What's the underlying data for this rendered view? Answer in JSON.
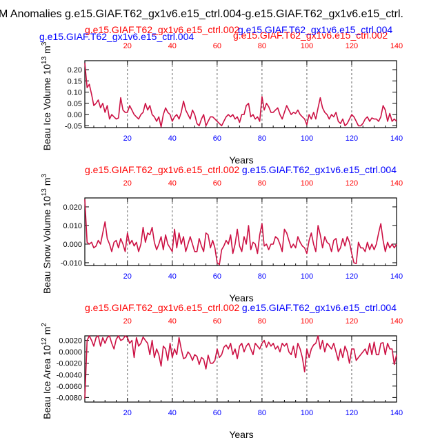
{
  "title": "M Anomalies g.e15.GIAF.T62_gx1v6.e15_ctrl.004-g.e15.GIAF.T62_gx1v6.e15_ctrl.",
  "colors": {
    "case_a": "#0000ff",
    "case_b": "#ff0000",
    "series": "#cc1144",
    "grid": "#666666"
  },
  "chart_data": [
    {
      "type": "line",
      "name": "volume",
      "top_labels": {
        "blue": "g.e15.GIAF.T62_gx1v6.e15_ctrl.004",
        "red_left": "g.e15.GIAF.T62_gx1v6.e15_ctrl.002",
        "red_right": "g.e15.GIAF.T62_gx1v6.e15_ctrl.002"
      },
      "ylabel": "Beau Ice Volume 10",
      "ylabel_exp": "13",
      "ylabel_unit": "m",
      "ylabel_unit_exp": "3",
      "xlabel": "Years",
      "xlim": [
        1,
        140
      ],
      "ylim": [
        -0.058,
        0.24
      ],
      "xticks": [
        20,
        40,
        60,
        80,
        100,
        120,
        140
      ],
      "yticks": [
        0.2,
        0.15,
        0.1,
        0.05,
        0.0,
        -0.05
      ],
      "ytick_labels": [
        "0.20",
        "0.15",
        "0.10",
        "0.05",
        "0.00",
        "-0.05"
      ],
      "x": [
        1,
        2,
        3,
        4,
        5,
        6,
        7,
        8,
        9,
        10,
        11,
        12,
        13,
        14,
        15,
        16,
        17,
        18,
        19,
        20,
        21,
        22,
        23,
        24,
        25,
        26,
        27,
        28,
        29,
        30,
        31,
        32,
        33,
        34,
        35,
        36,
        37,
        38,
        39,
        40,
        41,
        42,
        43,
        44,
        45,
        46,
        47,
        48,
        49,
        50,
        51,
        52,
        53,
        54,
        55,
        56,
        57,
        58,
        59,
        60,
        61,
        62,
        63,
        64,
        65,
        66,
        67,
        68,
        69,
        70,
        71,
        72,
        73,
        74,
        75,
        76,
        77,
        78,
        79,
        80,
        81,
        82,
        83,
        84,
        85,
        86,
        87,
        88,
        89,
        90,
        91,
        92,
        93,
        94,
        95,
        96,
        97,
        98,
        99,
        100,
        101,
        102,
        103,
        104,
        105,
        106,
        107,
        108,
        109,
        110,
        111,
        112,
        113,
        114,
        115,
        116,
        117,
        118,
        119,
        120,
        121,
        122,
        123,
        124,
        125,
        126,
        127,
        128,
        129,
        130,
        131,
        132,
        133,
        134,
        135,
        136,
        137,
        138,
        139,
        140
      ],
      "y": [
        0.23,
        0.12,
        0.135,
        0.09,
        0.04,
        0.05,
        0.065,
        0.03,
        0.05,
        0.01,
        0.04,
        -0.02,
        0.0,
        -0.01,
        -0.02,
        -0.015,
        0.075,
        0.02,
        0.01,
        0.01,
        0.04,
        0.02,
        0.0,
        -0.01,
        -0.02,
        0.0,
        0.01,
        0.05,
        0.02,
        0.04,
        0.0,
        -0.01,
        -0.03,
        -0.01,
        -0.055,
        0.0,
        0.03,
        0.01,
        0.0,
        -0.03,
        -0.01,
        0.0,
        -0.02,
        0.01,
        0.06,
        0.02,
        0.0,
        -0.02,
        0.02,
        0.0,
        -0.04,
        -0.05,
        -0.02,
        0.0,
        -0.05,
        -0.03,
        -0.01,
        -0.01,
        -0.02,
        -0.03,
        -0.04,
        -0.05,
        -0.03,
        -0.01,
        0.0,
        -0.01,
        0.0,
        -0.02,
        -0.01,
        -0.035,
        0.0,
        0.0,
        0.04,
        0.05,
        -0.01,
        0.0,
        -0.02,
        -0.01,
        -0.03,
        0.08,
        0.02,
        0.05,
        0.035,
        0.01,
        0.01,
        0.02,
        0.03,
        0.0,
        -0.02,
        0.01,
        0.04,
        0.02,
        0.0,
        0.01,
        0.005,
        0.02,
        0.0,
        -0.01,
        -0.02,
        -0.045,
        0.0,
        -0.02,
        0.01,
        -0.02,
        0.03,
        0.075,
        0.03,
        0.01,
        0.0,
        -0.02,
        0.0,
        -0.01,
        0.01,
        -0.03,
        -0.04,
        -0.02,
        -0.05,
        -0.04,
        -0.02,
        0.0,
        -0.01,
        -0.03,
        -0.05,
        -0.05,
        -0.04,
        -0.02,
        -0.01,
        -0.03,
        -0.015,
        -0.02,
        -0.02,
        -0.03,
        -0.01,
        0.04,
        0.02,
        -0.03,
        0.005,
        -0.03,
        -0.02,
        -0.03
      ]
    },
    {
      "type": "line",
      "name": "snow",
      "top_labels": {
        "red": "g.e15.GIAF.T62_gx1v6.e15_ctrl.002",
        "blue": "g.e15.GIAF.T62_gx1v6.e15_ctrl.004"
      },
      "ylabel": "Beau Snow Volume 10",
      "ylabel_exp": "13",
      "ylabel_unit": "m",
      "ylabel_unit_exp": "3",
      "xlabel": "Years",
      "xlim": [
        1,
        140
      ],
      "ylim": [
        -0.0115,
        0.0248
      ],
      "xticks": [
        20,
        40,
        60,
        80,
        100,
        120,
        140
      ],
      "yticks": [
        0.02,
        0.01,
        0.0,
        -0.01
      ],
      "ytick_labels": [
        "0.020",
        "0.010",
        "0.000",
        "-0.010"
      ],
      "x": [
        1,
        2,
        3,
        4,
        5,
        6,
        7,
        8,
        9,
        10,
        11,
        12,
        13,
        14,
        15,
        16,
        17,
        18,
        19,
        20,
        21,
        22,
        23,
        24,
        25,
        26,
        27,
        28,
        29,
        30,
        31,
        32,
        33,
        34,
        35,
        36,
        37,
        38,
        39,
        40,
        41,
        42,
        43,
        44,
        45,
        46,
        47,
        48,
        49,
        50,
        51,
        52,
        53,
        54,
        55,
        56,
        57,
        58,
        59,
        60,
        61,
        62,
        63,
        64,
        65,
        66,
        67,
        68,
        69,
        70,
        71,
        72,
        73,
        74,
        75,
        76,
        77,
        78,
        79,
        80,
        81,
        82,
        83,
        84,
        85,
        86,
        87,
        88,
        89,
        90,
        91,
        92,
        93,
        94,
        95,
        96,
        97,
        98,
        99,
        100,
        101,
        102,
        103,
        104,
        105,
        106,
        107,
        108,
        109,
        110,
        111,
        112,
        113,
        114,
        115,
        116,
        117,
        118,
        119,
        120,
        121,
        122,
        123,
        124,
        125,
        126,
        127,
        128,
        129,
        130,
        131,
        132,
        133,
        134,
        135,
        136,
        137,
        138,
        139,
        140
      ],
      "y": [
        0.024,
        0.001,
        0.0,
        0.001,
        -0.002,
        -0.001,
        0.002,
        0.0,
        0.006,
        0.012,
        0.003,
        0.0,
        -0.004,
        0.001,
        0.002,
        -0.002,
        0.003,
        0.0,
        -0.004,
        0.006,
        0.0,
        0.002,
        -0.001,
        0.001,
        -0.004,
        0.0,
        0.009,
        0.001,
        0.006,
        0.005,
        0.009,
        0.001,
        -0.003,
        0.0,
        0.004,
        -0.003,
        0.005,
        0.0,
        -0.002,
        -0.004,
        0.008,
        -0.002,
        0.006,
        0.0,
        0.004,
        -0.004,
        0.0,
        0.004,
        0.0,
        -0.004,
        -0.004,
        0.003,
        -0.001,
        -0.004,
        0.006,
        0.005,
        -0.002,
        0.002,
        -0.002,
        -0.01,
        -0.011,
        -0.003,
        -0.001,
        0.002,
        0.0,
        0.005,
        -0.005,
        0.0,
        0.008,
        -0.001,
        -0.004,
        0.004,
        0.0,
        0.01,
        -0.003,
        0.001,
        0.0,
        -0.005,
        0.005,
        0.011,
        -0.001,
        0.0,
        -0.003,
        0.0,
        0.0,
        0.004,
        0.003,
        0.0,
        -0.004,
        0.008,
        0.006,
        0.002,
        -0.002,
        0.0,
        -0.002,
        0.004,
        0.001,
        -0.001,
        -0.002,
        -0.005,
        0.002,
        0.006,
        0.0,
        -0.004,
        0.01,
        0.005,
        -0.002,
        0.004,
        0.001,
        0.0,
        -0.004,
        0.002,
        0.003,
        -0.004,
        -0.002,
        0.003,
        -0.001,
        0.004,
        0.001,
        -0.005,
        -0.01,
        -0.0105,
        0.001,
        -0.002,
        -0.002,
        -0.004,
        0.001,
        -0.003,
        0.0,
        -0.003,
        0.0,
        0.006,
        0.011,
        0.002,
        -0.004,
        0.001,
        -0.002,
        0.0,
        -0.002,
        0.0
      ]
    },
    {
      "type": "line",
      "name": "area",
      "top_labels": {
        "red": "g.e15.GIAF.T62_gx1v6.e15_ctrl.002",
        "blue": "g.e15.GIAF.T62_gx1v6.e15_ctrl.004"
      },
      "ylabel": "Beau Ice Area 10",
      "ylabel_exp": "12",
      "ylabel_unit": "m",
      "ylabel_unit_exp": "2",
      "xlabel": "Years",
      "xlim": [
        1,
        140
      ],
      "ylim": [
        -0.0088,
        0.0028
      ],
      "xticks": [
        20,
        40,
        60,
        80,
        100,
        120,
        140
      ],
      "yticks": [
        0.002,
        0.0,
        -0.002,
        -0.004,
        -0.006,
        -0.008
      ],
      "ytick_labels": [
        "0.0020",
        "0.0000",
        "-0.0020",
        "-0.0040",
        "-0.0060",
        "-0.0080"
      ],
      "x": [
        1,
        2,
        3,
        4,
        5,
        6,
        7,
        8,
        9,
        10,
        11,
        12,
        13,
        14,
        15,
        16,
        17,
        18,
        19,
        20,
        21,
        22,
        23,
        24,
        25,
        26,
        27,
        28,
        29,
        30,
        31,
        32,
        33,
        34,
        35,
        36,
        37,
        38,
        39,
        40,
        41,
        42,
        43,
        44,
        45,
        46,
        47,
        48,
        49,
        50,
        51,
        52,
        53,
        54,
        55,
        56,
        57,
        58,
        59,
        60,
        61,
        62,
        63,
        64,
        65,
        66,
        67,
        68,
        69,
        70,
        71,
        72,
        73,
        74,
        75,
        76,
        77,
        78,
        79,
        80,
        81,
        82,
        83,
        84,
        85,
        86,
        87,
        88,
        89,
        90,
        91,
        92,
        93,
        94,
        95,
        96,
        97,
        98,
        99,
        100,
        101,
        102,
        103,
        104,
        105,
        106,
        107,
        108,
        109,
        110,
        111,
        112,
        113,
        114,
        115,
        116,
        117,
        118,
        119,
        120,
        121,
        122,
        123,
        124,
        125,
        126,
        127,
        128,
        129,
        130,
        131,
        132,
        133,
        134,
        135,
        136,
        137,
        138,
        139,
        140
      ],
      "y": [
        -0.0082,
        0.002,
        0.0028,
        0.002,
        0.001,
        0.0025,
        0.0028,
        0.001,
        0.0025,
        0.0015,
        0.0025,
        0.0028,
        0.0015,
        0.0005,
        0.0022,
        0.0028,
        0.002,
        0.0022,
        0.0028,
        0.0025,
        0.0015,
        0.002,
        -0.001,
        0.0025,
        0.001,
        0.0015,
        0.0026,
        0.002,
        0.0015,
        -0.0005,
        0.002,
        -0.001,
        0.0005,
        -0.0005,
        -0.0025,
        0.001,
        0.0005,
        -0.0015,
        0.0015,
        -0.001,
        0.0005,
        -0.0005,
        0.0025,
        0.0005,
        -0.0012,
        -0.001,
        0.0,
        -0.0005,
        -0.0015,
        -0.0005,
        -0.0008,
        -0.0022,
        -0.001,
        -0.0013,
        -0.003,
        -0.0006,
        -0.002,
        -0.002,
        -0.0015,
        0.0005,
        -0.001,
        -0.0005,
        0.0008,
        0.0012,
        0.0005,
        0.0015,
        -0.0005,
        0.0005,
        -0.0012,
        0.001,
        0.0015,
        0.0,
        0.001,
        0.0015,
        0.0005,
        -0.0005,
        0.0015,
        0.001,
        0.0005,
        0.0015,
        0.002,
        0.0008,
        0.0017,
        0.001,
        0.0015,
        0.0005,
        0.001,
        0.0,
        0.0015,
        0.001,
        0.0015,
        0.0,
        -0.0005,
        0.001,
        -0.001,
        0.0015,
        0.0005,
        -0.001,
        -0.0035,
        0.0005,
        -0.001,
        0.0005,
        0.0012,
        0.0015,
        0.0028,
        0.0005,
        0.002,
        0.0,
        0.0015,
        0.001,
        0.0005,
        0.0015,
        0.0,
        -0.0015,
        0.0005,
        -0.001,
        0.001,
        0.0,
        -0.002,
        0.0005,
        0.0005,
        -0.0015,
        -0.001,
        -0.0005,
        0.0,
        0.0005,
        -0.0005,
        0.0015,
        -0.0005,
        0.0017,
        -0.0005,
        -0.0005,
        0.0015,
        0.0016,
        -0.0005,
        0.0015,
        0.0005,
        0.0005,
        -0.0022,
        -0.0005
      ]
    }
  ]
}
